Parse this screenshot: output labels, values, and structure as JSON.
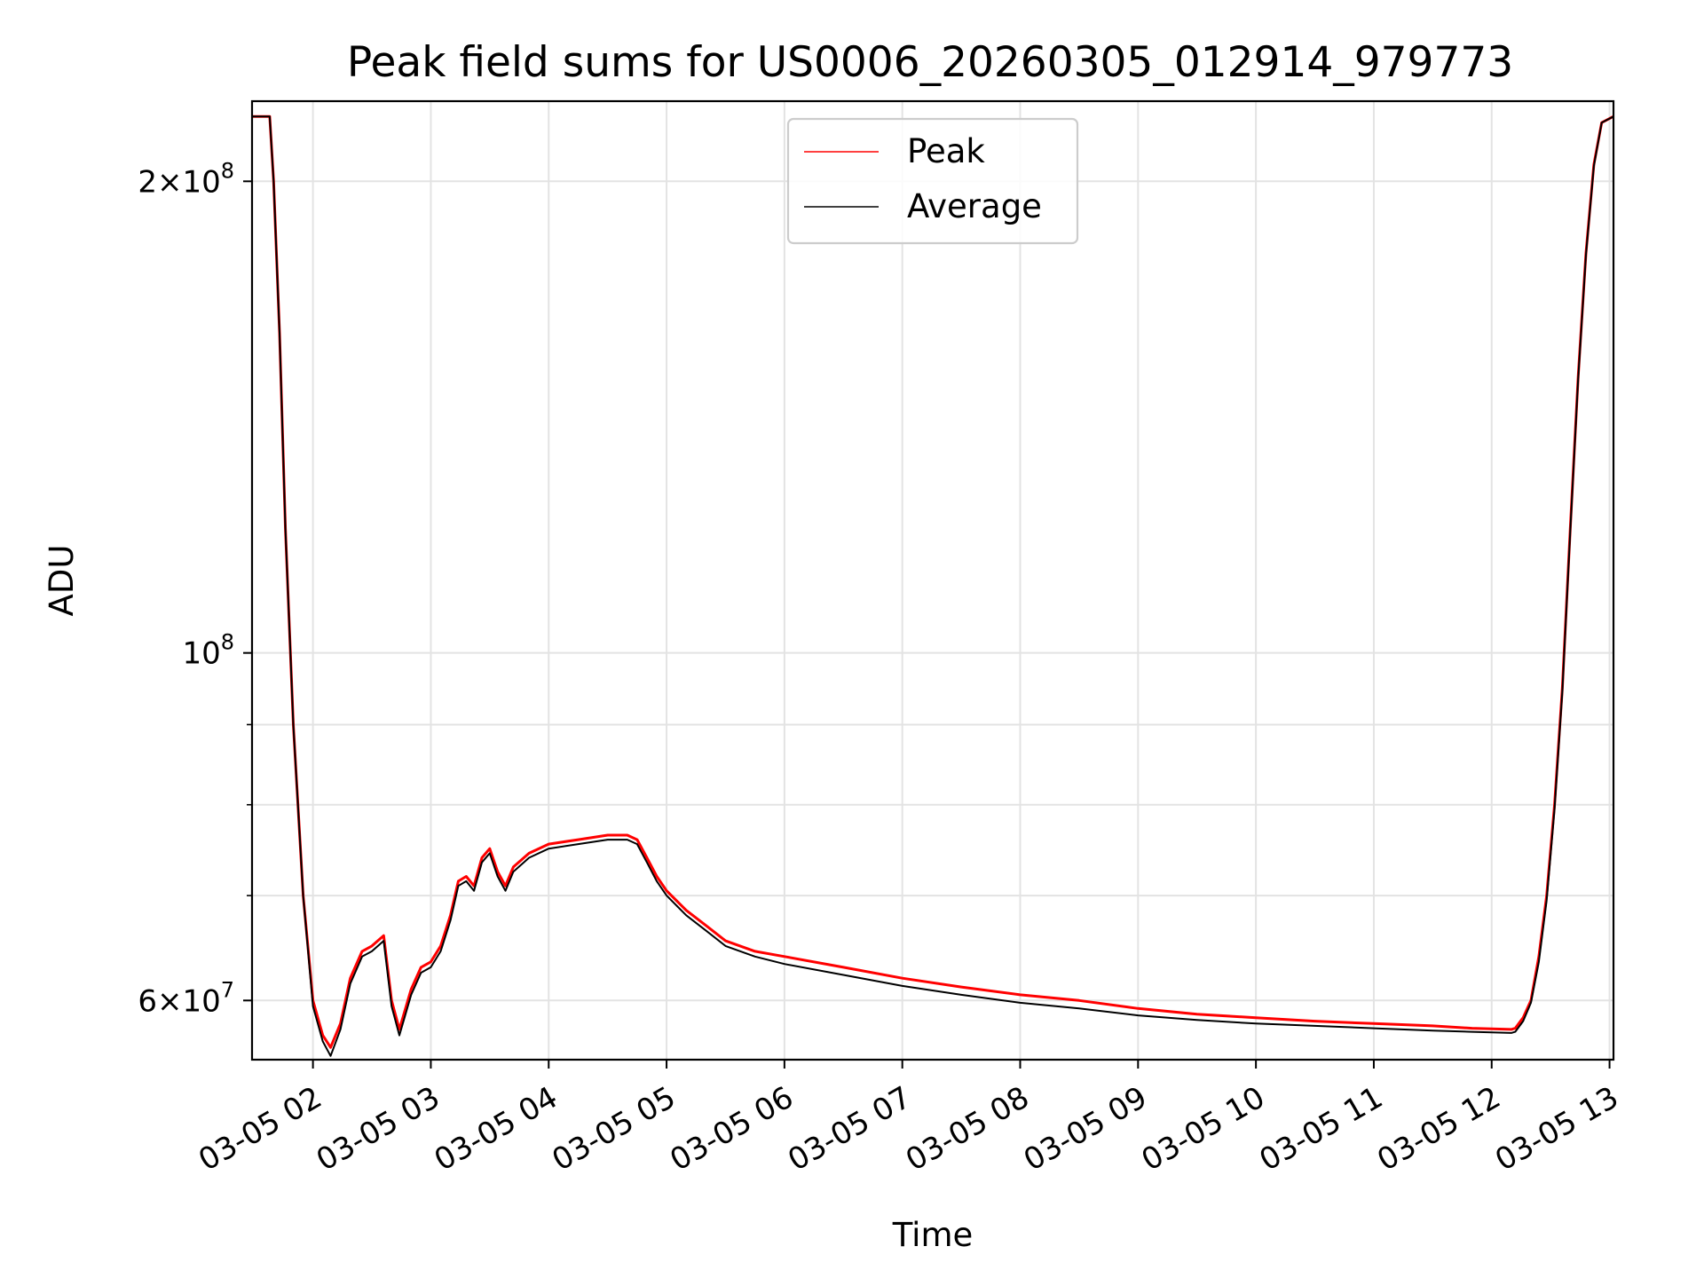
{
  "chart_data": {
    "type": "line",
    "title": "Peak field sums for US0006_20260305_012914_979773",
    "xlabel": "Time",
    "ylabel": "ADU",
    "x_scale": "time",
    "y_scale": "log",
    "xlim": [
      "2026-03-05T01:29",
      "2026-03-05T13:02"
    ],
    "ylim": [
      55000000,
      225000000
    ],
    "x_ticks": [
      {
        "value": "2026-03-05T02:00",
        "label": "03-05 02"
      },
      {
        "value": "2026-03-05T03:00",
        "label": "03-05 03"
      },
      {
        "value": "2026-03-05T04:00",
        "label": "03-05 04"
      },
      {
        "value": "2026-03-05T05:00",
        "label": "03-05 05"
      },
      {
        "value": "2026-03-05T06:00",
        "label": "03-05 06"
      },
      {
        "value": "2026-03-05T07:00",
        "label": "03-05 07"
      },
      {
        "value": "2026-03-05T08:00",
        "label": "03-05 08"
      },
      {
        "value": "2026-03-05T09:00",
        "label": "03-05 09"
      },
      {
        "value": "2026-03-05T10:00",
        "label": "03-05 10"
      },
      {
        "value": "2026-03-05T11:00",
        "label": "03-05 11"
      },
      {
        "value": "2026-03-05T12:00",
        "label": "03-05 12"
      },
      {
        "value": "2026-03-05T13:00",
        "label": "03-05 13"
      }
    ],
    "y_major_ticks": [
      {
        "value": 60000000,
        "mantissa": "6",
        "exponent": "7"
      },
      {
        "value": 100000000,
        "mantissa": "",
        "exponent": "8"
      },
      {
        "value": 200000000,
        "mantissa": "2",
        "exponent": "8"
      }
    ],
    "y_minor_ticks": [
      70000000,
      80000000,
      90000000
    ],
    "grid": true,
    "legend_position": "top-center",
    "series": [
      {
        "name": "Peak",
        "color": "#ff0000",
        "x": [
          "2026-03-05T01:29",
          "2026-03-05T01:38",
          "2026-03-05T01:40",
          "2026-03-05T01:43",
          "2026-03-05T01:46",
          "2026-03-05T01:50",
          "2026-03-05T01:55",
          "2026-03-05T02:00",
          "2026-03-05T02:05",
          "2026-03-05T02:09",
          "2026-03-05T02:14",
          "2026-03-05T02:19",
          "2026-03-05T02:25",
          "2026-03-05T02:30",
          "2026-03-05T02:36",
          "2026-03-05T02:40",
          "2026-03-05T02:44",
          "2026-03-05T02:50",
          "2026-03-05T02:55",
          "2026-03-05T03:00",
          "2026-03-05T03:05",
          "2026-03-05T03:10",
          "2026-03-05T03:14",
          "2026-03-05T03:18",
          "2026-03-05T03:22",
          "2026-03-05T03:26",
          "2026-03-05T03:30",
          "2026-03-05T03:34",
          "2026-03-05T03:38",
          "2026-03-05T03:42",
          "2026-03-05T03:50",
          "2026-03-05T04:00",
          "2026-03-05T04:15",
          "2026-03-05T04:30",
          "2026-03-05T04:40",
          "2026-03-05T04:45",
          "2026-03-05T04:50",
          "2026-03-05T04:55",
          "2026-03-05T05:00",
          "2026-03-05T05:10",
          "2026-03-05T05:20",
          "2026-03-05T05:30",
          "2026-03-05T05:45",
          "2026-03-05T06:00",
          "2026-03-05T06:30",
          "2026-03-05T07:00",
          "2026-03-05T07:30",
          "2026-03-05T08:00",
          "2026-03-05T08:30",
          "2026-03-05T09:00",
          "2026-03-05T09:30",
          "2026-03-05T10:00",
          "2026-03-05T10:30",
          "2026-03-05T11:00",
          "2026-03-05T11:30",
          "2026-03-05T11:50",
          "2026-03-05T12:10",
          "2026-03-05T12:12",
          "2026-03-05T12:16",
          "2026-03-05T12:20",
          "2026-03-05T12:24",
          "2026-03-05T12:28",
          "2026-03-05T12:32",
          "2026-03-05T12:36",
          "2026-03-05T12:40",
          "2026-03-05T12:44",
          "2026-03-05T12:48",
          "2026-03-05T12:52",
          "2026-03-05T12:56",
          "2026-03-05T13:02"
        ],
        "y": [
          220000000,
          220000000,
          200000000,
          160000000,
          120000000,
          90000000,
          70000000,
          60000000,
          57000000,
          56000000,
          58000000,
          62000000,
          64500000,
          65000000,
          66000000,
          60000000,
          57500000,
          61000000,
          63000000,
          63500000,
          65000000,
          68000000,
          71500000,
          72000000,
          71000000,
          74000000,
          75000000,
          72500000,
          71000000,
          73000000,
          74500000,
          75500000,
          76000000,
          76500000,
          76500000,
          76000000,
          74000000,
          72000000,
          70500000,
          68500000,
          67000000,
          65500000,
          64500000,
          64000000,
          63000000,
          62000000,
          61200000,
          60500000,
          60000000,
          59300000,
          58800000,
          58500000,
          58200000,
          58000000,
          57800000,
          57600000,
          57500000,
          57600000,
          58500000,
          60000000,
          64000000,
          70000000,
          80000000,
          95000000,
          120000000,
          150000000,
          180000000,
          205000000,
          218000000,
          220000000
        ]
      },
      {
        "name": "Average",
        "color": "#000000",
        "x": [
          "2026-03-05T01:29",
          "2026-03-05T01:38",
          "2026-03-05T01:40",
          "2026-03-05T01:43",
          "2026-03-05T01:46",
          "2026-03-05T01:50",
          "2026-03-05T01:55",
          "2026-03-05T02:00",
          "2026-03-05T02:05",
          "2026-03-05T02:09",
          "2026-03-05T02:14",
          "2026-03-05T02:19",
          "2026-03-05T02:25",
          "2026-03-05T02:30",
          "2026-03-05T02:36",
          "2026-03-05T02:40",
          "2026-03-05T02:44",
          "2026-03-05T02:50",
          "2026-03-05T02:55",
          "2026-03-05T03:00",
          "2026-03-05T03:05",
          "2026-03-05T03:10",
          "2026-03-05T03:14",
          "2026-03-05T03:18",
          "2026-03-05T03:22",
          "2026-03-05T03:26",
          "2026-03-05T03:30",
          "2026-03-05T03:34",
          "2026-03-05T03:38",
          "2026-03-05T03:42",
          "2026-03-05T03:50",
          "2026-03-05T04:00",
          "2026-03-05T04:15",
          "2026-03-05T04:30",
          "2026-03-05T04:40",
          "2026-03-05T04:45",
          "2026-03-05T04:50",
          "2026-03-05T04:55",
          "2026-03-05T05:00",
          "2026-03-05T05:10",
          "2026-03-05T05:20",
          "2026-03-05T05:30",
          "2026-03-05T05:45",
          "2026-03-05T06:00",
          "2026-03-05T06:30",
          "2026-03-05T07:00",
          "2026-03-05T07:30",
          "2026-03-05T08:00",
          "2026-03-05T08:30",
          "2026-03-05T09:00",
          "2026-03-05T09:30",
          "2026-03-05T10:00",
          "2026-03-05T10:30",
          "2026-03-05T11:00",
          "2026-03-05T11:30",
          "2026-03-05T11:50",
          "2026-03-05T12:10",
          "2026-03-05T12:12",
          "2026-03-05T12:16",
          "2026-03-05T12:20",
          "2026-03-05T12:24",
          "2026-03-05T12:28",
          "2026-03-05T12:32",
          "2026-03-05T12:36",
          "2026-03-05T12:40",
          "2026-03-05T12:44",
          "2026-03-05T12:48",
          "2026-03-05T12:52",
          "2026-03-05T12:56",
          "2026-03-05T13:02"
        ],
        "y": [
          220000000,
          220000000,
          200000000,
          160000000,
          120000000,
          90000000,
          70000000,
          59500000,
          56500000,
          55300000,
          57500000,
          61500000,
          64000000,
          64500000,
          65500000,
          59500000,
          57000000,
          60500000,
          62500000,
          63000000,
          64500000,
          67500000,
          71000000,
          71500000,
          70500000,
          73500000,
          74500000,
          72000000,
          70500000,
          72500000,
          74000000,
          75000000,
          75500000,
          76000000,
          76000000,
          75500000,
          73500000,
          71500000,
          70000000,
          68000000,
          66500000,
          65000000,
          64000000,
          63300000,
          62300000,
          61300000,
          60500000,
          59800000,
          59300000,
          58700000,
          58300000,
          58000000,
          57800000,
          57600000,
          57400000,
          57300000,
          57200000,
          57300000,
          58200000,
          59800000,
          63500000,
          69500000,
          79500000,
          94500000,
          119500000,
          149500000,
          179500000,
          204500000,
          218000000,
          220000000
        ]
      }
    ]
  }
}
